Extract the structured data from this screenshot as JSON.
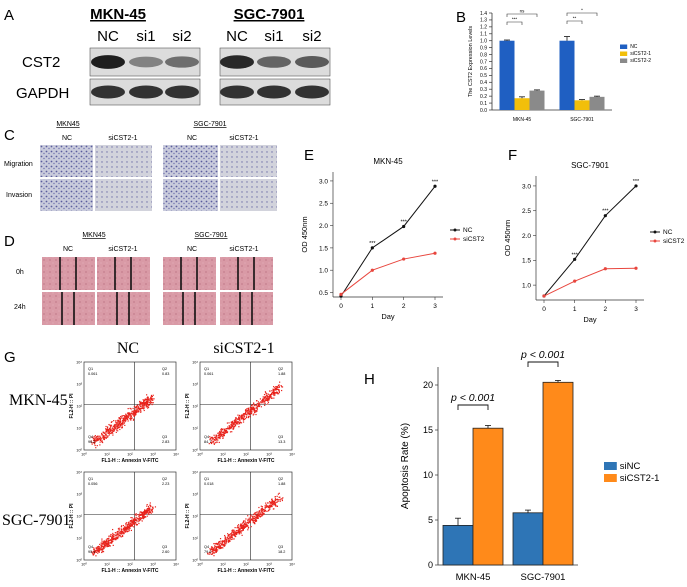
{
  "panel_letters": {
    "A": "A",
    "B": "B",
    "C": "C",
    "D": "D",
    "E": "E",
    "F": "F",
    "G": "G",
    "H": "H"
  },
  "panel_a": {
    "groups": [
      "MKN-45",
      "SGC-7901"
    ],
    "lanes": [
      "NC",
      "si1",
      "si2"
    ],
    "rows": [
      "CST2",
      "GAPDH"
    ],
    "band_intensity": {
      "MKN-45": {
        "CST2": [
          0.95,
          0.45,
          0.55
        ],
        "GAPDH": [
          0.85,
          0.85,
          0.85
        ]
      },
      "SGC-7901": {
        "CST2": [
          0.9,
          0.6,
          0.65
        ],
        "GAPDH": [
          0.85,
          0.85,
          0.85
        ]
      }
    }
  },
  "panel_c": {
    "groups": [
      "MKN45",
      "SGC-7901"
    ],
    "conditions": [
      "NC",
      "siCST2-1"
    ],
    "rows": [
      "Migration",
      "Invasion"
    ]
  },
  "panel_d": {
    "groups": [
      "MKN45",
      "SGC-7901"
    ],
    "conditions": [
      "NC",
      "siCST2-1"
    ],
    "rows": [
      "0h",
      "24h"
    ]
  },
  "panel_g": {
    "conditions": [
      "NC",
      "siCST2-1"
    ],
    "cell_lines": [
      "MKN-45",
      "SGC-7901"
    ],
    "xlabel": "FL1-H :: Annexin V-FITC",
    "ylabel": "FL2-H :: PI",
    "decades": [
      "10⁰",
      "10¹",
      "10²",
      "10³",
      "10⁴"
    ],
    "quadrant_labels": [
      "Q1",
      "Q2",
      "Q3",
      "Q4"
    ],
    "quadrants": [
      [
        "0.061",
        "0.83",
        "2.83",
        "96.2"
      ],
      [
        "0.061",
        "1.88",
        "13.3",
        "84.7"
      ],
      [
        "0.056",
        "2.23",
        "2.60",
        "95.1"
      ],
      [
        "0.018",
        "1.88",
        "18.2",
        "79.9"
      ]
    ]
  },
  "chart_data": [
    {
      "panel": "B",
      "type": "bar",
      "title": "",
      "xlabel": "",
      "ylabel": "The CST2 Expression Levels",
      "ylim": [
        0,
        1.4
      ],
      "yticks": [
        "0.0",
        "0.1",
        "0.2",
        "0.3",
        "0.4",
        "0.5",
        "0.6",
        "0.7",
        "0.8",
        "0.9",
        "1.0",
        "1.1",
        "1.2",
        "1.3",
        "1.4"
      ],
      "categories": [
        "MKN-45",
        "SGC-7901"
      ],
      "series": [
        {
          "name": "NC",
          "color": "#1f5fc2",
          "values": [
            1.0,
            1.0
          ],
          "errors": [
            0.01,
            0.06
          ]
        },
        {
          "name": "siCST2-1",
          "color": "#f2bf0a",
          "values": [
            0.17,
            0.14
          ],
          "errors": [
            0.02,
            0.01
          ]
        },
        {
          "name": "siCST2-2",
          "color": "#8a8a8a",
          "values": [
            0.28,
            0.19
          ],
          "errors": [
            0.01,
            0.01
          ]
        }
      ],
      "significance": [
        "***",
        "ns",
        "**",
        "*"
      ],
      "legend": "right"
    },
    {
      "panel": "E",
      "type": "line",
      "title": "MKN-45",
      "xlabel": "Day",
      "ylabel": "OD 450nm",
      "x": [
        0,
        1,
        2,
        3
      ],
      "xticks": [
        "0",
        "1",
        "2",
        "3"
      ],
      "ylim": [
        0.4,
        3.2
      ],
      "yticks": [
        "0.5",
        "1.0",
        "1.5",
        "2.0",
        "2.5",
        "3.0"
      ],
      "series": [
        {
          "name": "NC",
          "color": "#111111",
          "values": [
            0.42,
            1.5,
            1.98,
            2.88
          ]
        },
        {
          "name": "siCST2",
          "color": "#e8463e",
          "values": [
            0.46,
            1.0,
            1.25,
            1.38
          ]
        }
      ],
      "annotations": [
        "***",
        "***",
        "***"
      ],
      "legend": "right"
    },
    {
      "panel": "F",
      "type": "line",
      "title": "SGC-7901",
      "xlabel": "Day",
      "ylabel": "OD 450nm",
      "x": [
        0,
        1,
        2,
        3
      ],
      "xticks": [
        "0",
        "1",
        "2",
        "3"
      ],
      "ylim": [
        0.7,
        3.2
      ],
      "yticks": [
        "1.0",
        "1.5",
        "2.0",
        "2.5",
        "3.0"
      ],
      "series": [
        {
          "name": "NC",
          "color": "#111111",
          "values": [
            0.78,
            1.52,
            2.4,
            3.0
          ]
        },
        {
          "name": "siCST2",
          "color": "#e8463e",
          "values": [
            0.78,
            1.08,
            1.33,
            1.34
          ]
        }
      ],
      "annotations": [
        "***",
        "***",
        "***"
      ],
      "legend": "right"
    },
    {
      "panel": "H",
      "type": "bar",
      "title": "",
      "xlabel": "",
      "ylabel": "Apoptosis Rate (%)",
      "ylim": [
        0,
        22
      ],
      "yticks": [
        "0",
        "5",
        "10",
        "15",
        "20"
      ],
      "categories": [
        "MKN-45",
        "SGC-7901"
      ],
      "series": [
        {
          "name": "siNC",
          "color": "#2e75b6",
          "values": [
            4.4,
            5.8
          ],
          "errors": [
            0.8,
            0.3
          ]
        },
        {
          "name": "siCST2-1",
          "color": "#ff8a1a",
          "values": [
            15.2,
            20.3
          ],
          "errors": [
            0.3,
            0.2
          ]
        }
      ],
      "significance": [
        "p < 0.001",
        "p < 0.001"
      ],
      "legend": "right"
    }
  ]
}
